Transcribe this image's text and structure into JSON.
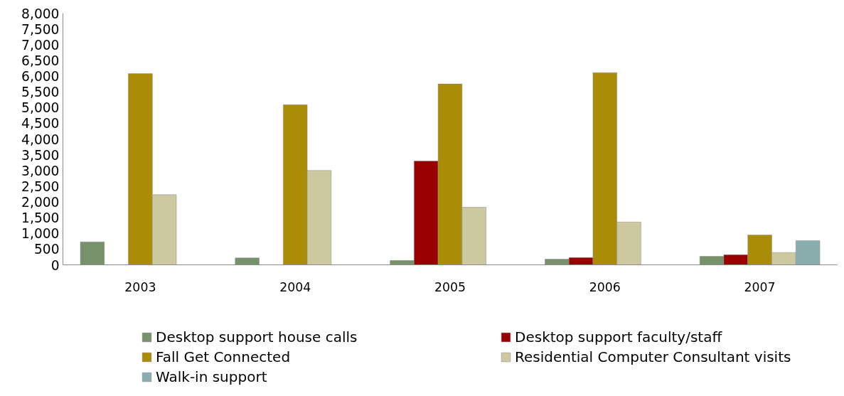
{
  "chart_data": {
    "type": "bar",
    "categories": [
      "2003",
      "2004",
      "2005",
      "2006",
      "2007"
    ],
    "series": [
      {
        "name": "Desktop support house calls",
        "color": "#77916b",
        "values": [
          730,
          220,
          140,
          180,
          270
        ]
      },
      {
        "name": "Desktop support faculty/staff",
        "color": "#990000",
        "values": [
          null,
          null,
          3300,
          230,
          320
        ]
      },
      {
        "name": "Fall Get Connected",
        "color": "#aa8c07",
        "values": [
          6080,
          5090,
          5750,
          6110,
          950
        ]
      },
      {
        "name": "Residential Computer Consultant visits",
        "color": "#ccc8a0",
        "values": [
          2230,
          3000,
          1830,
          1360,
          390
        ]
      },
      {
        "name": "Walk-in support",
        "color": "#8aaeae",
        "values": [
          null,
          null,
          null,
          null,
          770
        ]
      }
    ],
    "ylim": [
      0,
      8000
    ],
    "yticks": [
      0,
      {
        "value": 500,
        "label": "500"
      },
      {
        "value": 1000,
        "label": "1,000"
      },
      {
        "value": 1500,
        "label": "1,500"
      },
      {
        "value": 2000,
        "label": "2,000"
      },
      {
        "value": 2500,
        "label": "2,500"
      },
      {
        "value": 3000,
        "label": "3,000"
      },
      {
        "value": 3500,
        "label": "3,500"
      },
      {
        "value": 4000,
        "label": "4,000"
      },
      {
        "value": 4500,
        "label": "4,500"
      },
      {
        "value": 5000,
        "label": "5,000"
      },
      {
        "value": 5500,
        "label": "5,500"
      },
      {
        "value": 6000,
        "label": "6,000"
      },
      {
        "value": 6500,
        "label": "6,500"
      },
      {
        "value": 7000,
        "label": "7,000"
      },
      {
        "value": 7500,
        "label": "7,500"
      },
      {
        "value": 8000,
        "label": "8,000"
      }
    ],
    "grid": false,
    "legend": "bottom"
  }
}
